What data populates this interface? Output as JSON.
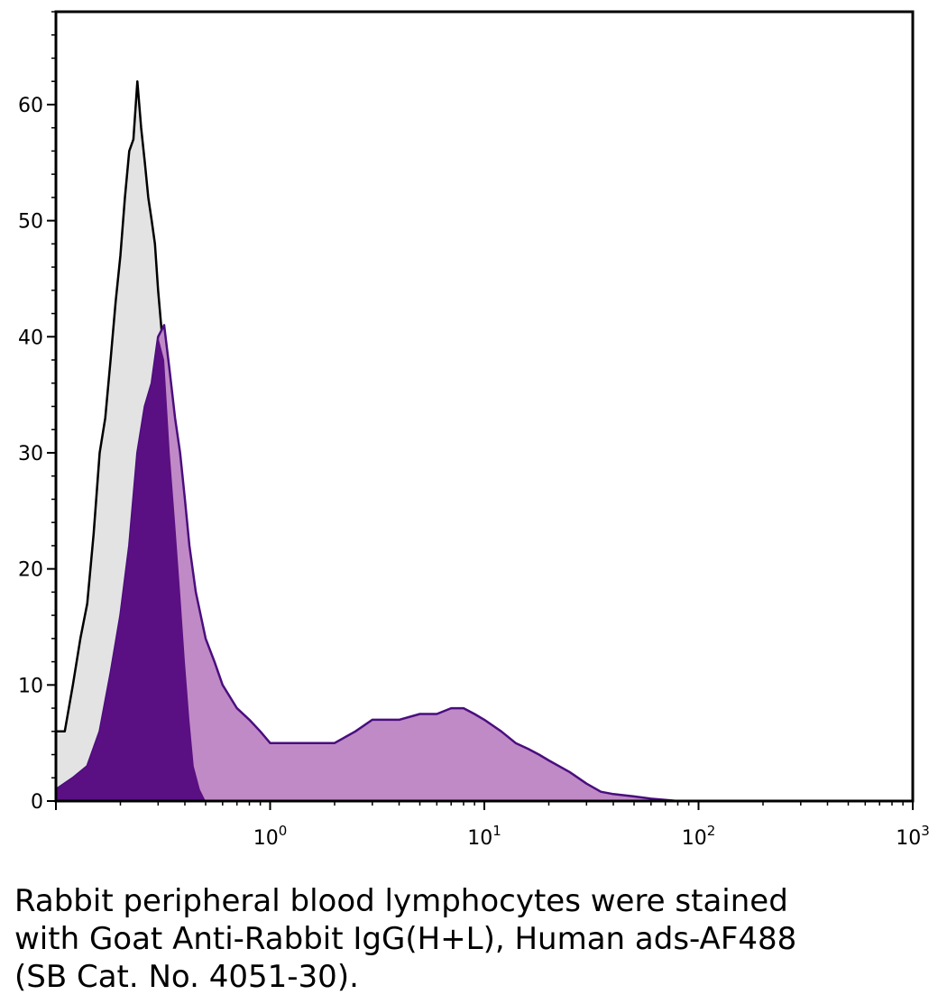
{
  "chart_data": {
    "type": "area",
    "xscale": "log",
    "xlim": [
      0.1,
      1000
    ],
    "ylim": [
      0,
      68
    ],
    "grid": false,
    "legend": "none",
    "title": "",
    "xlabel": "",
    "ylabel": "",
    "x_ticks": [
      {
        "value": 1,
        "base": "10",
        "exp": "0"
      },
      {
        "value": 10,
        "base": "10",
        "exp": "1"
      },
      {
        "value": 100,
        "base": "10",
        "exp": "2"
      },
      {
        "value": 1000,
        "base": "10",
        "exp": "3"
      }
    ],
    "y_ticks": [
      {
        "value": 0,
        "label": "0"
      },
      {
        "value": 10,
        "label": "10"
      },
      {
        "value": 20,
        "label": "20"
      },
      {
        "value": 30,
        "label": "30"
      },
      {
        "value": 40,
        "label": "40"
      },
      {
        "value": 50,
        "label": "50"
      },
      {
        "value": 60,
        "label": "60"
      }
    ],
    "series": [
      {
        "role": "unstained control (gray fill, black outline)",
        "fill": "#e3e3e3",
        "stroke": "#000000",
        "points": [
          [
            0.1,
            6
          ],
          [
            0.11,
            6
          ],
          [
            0.12,
            10
          ],
          [
            0.13,
            14
          ],
          [
            0.14,
            17
          ],
          [
            0.15,
            23
          ],
          [
            0.16,
            30
          ],
          [
            0.17,
            33
          ],
          [
            0.18,
            38
          ],
          [
            0.19,
            43
          ],
          [
            0.2,
            47
          ],
          [
            0.21,
            52
          ],
          [
            0.22,
            56
          ],
          [
            0.23,
            57
          ],
          [
            0.24,
            62
          ],
          [
            0.25,
            58
          ],
          [
            0.26,
            55
          ],
          [
            0.27,
            52
          ],
          [
            0.28,
            50
          ],
          [
            0.29,
            48
          ],
          [
            0.3,
            44
          ],
          [
            0.32,
            38
          ],
          [
            0.34,
            30
          ],
          [
            0.36,
            24
          ],
          [
            0.38,
            18
          ],
          [
            0.4,
            12
          ],
          [
            0.42,
            7
          ],
          [
            0.44,
            3
          ],
          [
            0.47,
            1
          ],
          [
            0.5,
            0
          ]
        ]
      },
      {
        "role": "stained sample (light purple fill, dark purple outline)",
        "fill": "#c08ac6",
        "stroke": "#4a0e7e",
        "points": [
          [
            0.1,
            1
          ],
          [
            0.12,
            2
          ],
          [
            0.14,
            3
          ],
          [
            0.16,
            6
          ],
          [
            0.18,
            11
          ],
          [
            0.2,
            16
          ],
          [
            0.22,
            22
          ],
          [
            0.24,
            30
          ],
          [
            0.26,
            34
          ],
          [
            0.28,
            36
          ],
          [
            0.3,
            40
          ],
          [
            0.32,
            41
          ],
          [
            0.34,
            37
          ],
          [
            0.36,
            33
          ],
          [
            0.38,
            30
          ],
          [
            0.4,
            26
          ],
          [
            0.42,
            22
          ],
          [
            0.45,
            18
          ],
          [
            0.5,
            14
          ],
          [
            0.55,
            12
          ],
          [
            0.6,
            10
          ],
          [
            0.7,
            8
          ],
          [
            0.8,
            7
          ],
          [
            0.9,
            6
          ],
          [
            1.0,
            5
          ],
          [
            1.2,
            5
          ],
          [
            1.5,
            5
          ],
          [
            2.0,
            5
          ],
          [
            2.5,
            6
          ],
          [
            3.0,
            7
          ],
          [
            4.0,
            7
          ],
          [
            5.0,
            7.5
          ],
          [
            6.0,
            7.5
          ],
          [
            7.0,
            8
          ],
          [
            8.0,
            8
          ],
          [
            9.0,
            7.5
          ],
          [
            10,
            7
          ],
          [
            12,
            6
          ],
          [
            14,
            5
          ],
          [
            16,
            4.5
          ],
          [
            18,
            4
          ],
          [
            20,
            3.5
          ],
          [
            25,
            2.5
          ],
          [
            30,
            1.5
          ],
          [
            35,
            0.8
          ],
          [
            40,
            0.6
          ],
          [
            50,
            0.4
          ],
          [
            60,
            0.2
          ],
          [
            70,
            0.1
          ],
          [
            80,
            0
          ]
        ]
      },
      {
        "role": "overlap region (dark purple fill)",
        "fill": "#5a0f82",
        "stroke": "none",
        "points": [
          [
            0.1,
            1
          ],
          [
            0.12,
            2
          ],
          [
            0.14,
            3
          ],
          [
            0.16,
            6
          ],
          [
            0.18,
            11
          ],
          [
            0.2,
            16
          ],
          [
            0.22,
            22
          ],
          [
            0.24,
            30
          ],
          [
            0.26,
            34
          ],
          [
            0.28,
            36
          ],
          [
            0.3,
            40
          ],
          [
            0.32,
            38
          ],
          [
            0.34,
            30
          ],
          [
            0.36,
            24
          ],
          [
            0.38,
            18
          ],
          [
            0.4,
            12
          ],
          [
            0.42,
            7
          ],
          [
            0.44,
            3
          ],
          [
            0.47,
            1
          ],
          [
            0.5,
            0
          ]
        ]
      }
    ]
  },
  "caption": {
    "line1": "Rabbit peripheral blood lymphocytes were stained",
    "line2": "with Goat Anti-Rabbit IgG(H+L), Human ads-AF488",
    "line3": "(SB Cat. No. 4051-30)."
  }
}
